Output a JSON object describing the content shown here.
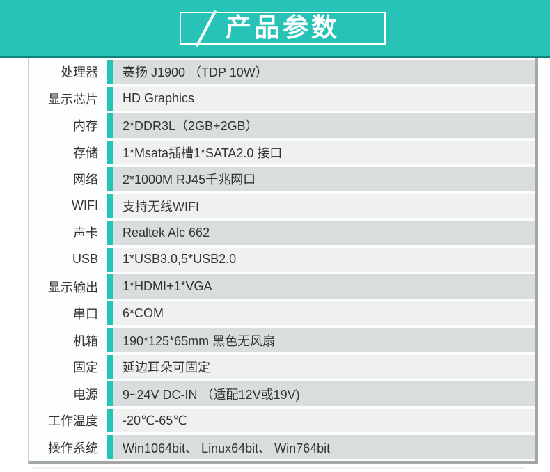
{
  "banner": {
    "title": "产品参数",
    "slash_icon": "slash-icon"
  },
  "theme": {
    "teal": "#26c3b6",
    "teal_dark": "#0c837c",
    "row_gray": "#d9dddd",
    "row_light": "#eff1f1",
    "label_bg": "#fcfdfd",
    "border_light": "#c9cccc",
    "border_dark": "#a2a6a6",
    "text": "#333333",
    "banner_text": "#ffffff"
  },
  "table": {
    "rows": [
      {
        "label": "处理器",
        "value": "赛扬 J1900 （TDP 10W）"
      },
      {
        "label": "显示芯片",
        "value": "HD Graphics"
      },
      {
        "label": "内存",
        "value": "2*DDR3L（2GB+2GB）"
      },
      {
        "label": "存储",
        "value": "1*Msata插槽1*SATA2.0 接口"
      },
      {
        "label": "网络",
        "value": "2*1000M RJ45千兆网口"
      },
      {
        "label": "WIFI",
        "value": "支持无线WIFI"
      },
      {
        "label": "声卡",
        "value": "Realtek Alc 662"
      },
      {
        "label": "USB",
        "value": "1*USB3.0,5*USB2.0"
      },
      {
        "label": "显示输出",
        "value": "1*HDMI+1*VGA"
      },
      {
        "label": "串口",
        "value": "6*COM"
      },
      {
        "label": "机箱",
        "value": "190*125*65mm 黑色无风扇"
      },
      {
        "label": "固定",
        "value": "延边耳朵可固定"
      },
      {
        "label": "电源",
        "value": "9~24V DC-IN （适配12V或19V)"
      },
      {
        "label": "工作温度",
        "value": "-20℃-65℃"
      },
      {
        "label": "操作系统",
        "value": "Win1064bit、 Linux64bit、 Win764bit"
      }
    ]
  }
}
